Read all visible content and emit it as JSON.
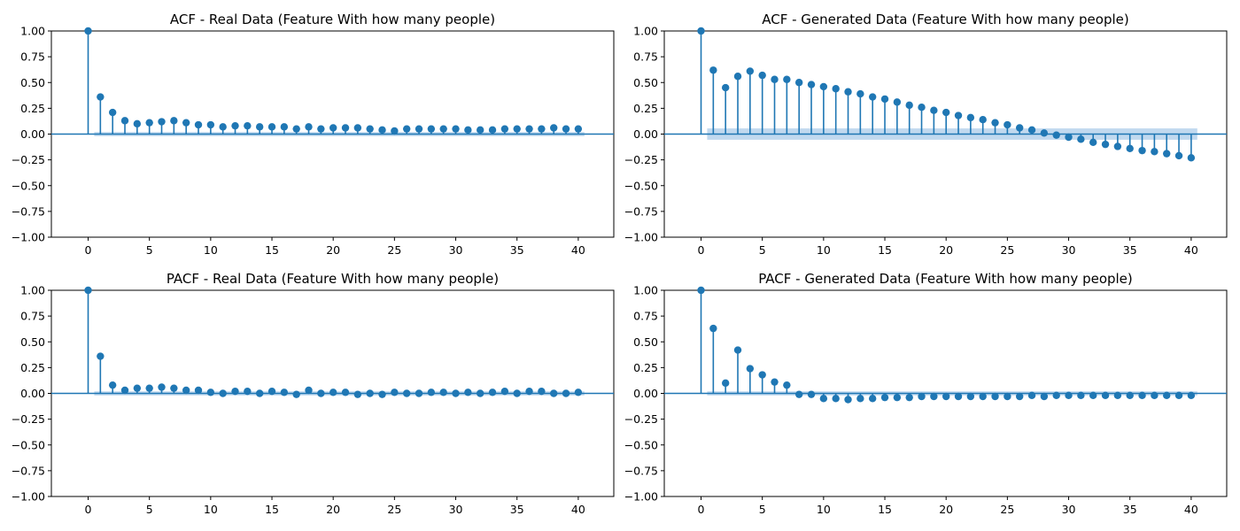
{
  "colors": {
    "series": "#1f77b4",
    "conf_band": "#a6c9e8",
    "axis": "#000000",
    "background": "#ffffff"
  },
  "chart_data": [
    {
      "type": "stem",
      "title": "ACF - Real Data (Feature With how many people)",
      "xlim": [
        -3,
        42.9
      ],
      "ylim": [
        -1,
        1
      ],
      "xticks": [
        0,
        5,
        10,
        15,
        20,
        25,
        30,
        35,
        40
      ],
      "yticks": [
        -1.0,
        -0.75,
        -0.5,
        -0.25,
        0.0,
        0.25,
        0.5,
        0.75,
        1.0
      ],
      "ytick_labels": [
        "−1.00",
        "−0.75",
        "−0.50",
        "−0.25",
        "0.00",
        "0.25",
        "0.50",
        "0.75",
        "1.00"
      ],
      "xtick_labels": [
        "0",
        "5",
        "10",
        "15",
        "20",
        "25",
        "30",
        "35",
        "40"
      ],
      "zero_line": true,
      "confidence_band_halfwidth": 0.02,
      "lags": [
        0,
        1,
        2,
        3,
        4,
        5,
        6,
        7,
        8,
        9,
        10,
        11,
        12,
        13,
        14,
        15,
        16,
        17,
        18,
        19,
        20,
        21,
        22,
        23,
        24,
        25,
        26,
        27,
        28,
        29,
        30,
        31,
        32,
        33,
        34,
        35,
        36,
        37,
        38,
        39,
        40
      ],
      "values": [
        1.0,
        0.36,
        0.21,
        0.13,
        0.1,
        0.11,
        0.12,
        0.13,
        0.11,
        0.09,
        0.09,
        0.07,
        0.08,
        0.08,
        0.07,
        0.07,
        0.07,
        0.05,
        0.07,
        0.05,
        0.06,
        0.06,
        0.06,
        0.05,
        0.04,
        0.03,
        0.05,
        0.05,
        0.05,
        0.05,
        0.05,
        0.04,
        0.04,
        0.04,
        0.05,
        0.05,
        0.05,
        0.05,
        0.06,
        0.05,
        0.05
      ]
    },
    {
      "type": "stem",
      "title": "ACF - Generated Data (Feature With how many people)",
      "xlim": [
        -3,
        42.9
      ],
      "ylim": [
        -1,
        1
      ],
      "xticks": [
        0,
        5,
        10,
        15,
        20,
        25,
        30,
        35,
        40
      ],
      "yticks": [
        -1.0,
        -0.75,
        -0.5,
        -0.25,
        0.0,
        0.25,
        0.5,
        0.75,
        1.0
      ],
      "ytick_labels": [
        "−1.00",
        "−0.75",
        "−0.50",
        "−0.25",
        "0.00",
        "0.25",
        "0.50",
        "0.75",
        "1.00"
      ],
      "xtick_labels": [
        "0",
        "5",
        "10",
        "15",
        "20",
        "25",
        "30",
        "35",
        "40"
      ],
      "zero_line": true,
      "confidence_band_halfwidth": 0.055,
      "lags": [
        0,
        1,
        2,
        3,
        4,
        5,
        6,
        7,
        8,
        9,
        10,
        11,
        12,
        13,
        14,
        15,
        16,
        17,
        18,
        19,
        20,
        21,
        22,
        23,
        24,
        25,
        26,
        27,
        28,
        29,
        30,
        31,
        32,
        33,
        34,
        35,
        36,
        37,
        38,
        39,
        40
      ],
      "values": [
        1.0,
        0.62,
        0.45,
        0.56,
        0.61,
        0.57,
        0.53,
        0.53,
        0.5,
        0.48,
        0.46,
        0.44,
        0.41,
        0.39,
        0.36,
        0.34,
        0.31,
        0.28,
        0.26,
        0.23,
        0.21,
        0.18,
        0.16,
        0.14,
        0.11,
        0.09,
        0.06,
        0.04,
        0.01,
        -0.01,
        -0.03,
        -0.05,
        -0.08,
        -0.1,
        -0.12,
        -0.14,
        -0.16,
        -0.17,
        -0.19,
        -0.21,
        -0.23
      ]
    },
    {
      "type": "stem",
      "title": "PACF - Real Data (Feature With how many people)",
      "xlim": [
        -3,
        42.9
      ],
      "ylim": [
        -1,
        1
      ],
      "xticks": [
        0,
        5,
        10,
        15,
        20,
        25,
        30,
        35,
        40
      ],
      "yticks": [
        -1.0,
        -0.75,
        -0.5,
        -0.25,
        0.0,
        0.25,
        0.5,
        0.75,
        1.0
      ],
      "ytick_labels": [
        "−1.00",
        "−0.75",
        "−0.50",
        "−0.25",
        "0.00",
        "0.25",
        "0.50",
        "0.75",
        "1.00"
      ],
      "xtick_labels": [
        "0",
        "5",
        "10",
        "15",
        "20",
        "25",
        "30",
        "35",
        "40"
      ],
      "zero_line": true,
      "confidence_band_halfwidth": 0.02,
      "lags": [
        0,
        1,
        2,
        3,
        4,
        5,
        6,
        7,
        8,
        9,
        10,
        11,
        12,
        13,
        14,
        15,
        16,
        17,
        18,
        19,
        20,
        21,
        22,
        23,
        24,
        25,
        26,
        27,
        28,
        29,
        30,
        31,
        32,
        33,
        34,
        35,
        36,
        37,
        38,
        39,
        40
      ],
      "values": [
        1.0,
        0.36,
        0.08,
        0.03,
        0.05,
        0.05,
        0.06,
        0.05,
        0.03,
        0.03,
        0.01,
        0.0,
        0.02,
        0.02,
        0.0,
        0.02,
        0.01,
        -0.01,
        0.03,
        0.0,
        0.01,
        0.01,
        -0.01,
        0.0,
        -0.01,
        0.01,
        0.0,
        0.0,
        0.01,
        0.01,
        0.0,
        0.01,
        0.0,
        0.01,
        0.02,
        0.0,
        0.02,
        0.02,
        0.0,
        0.0,
        0.01
      ]
    },
    {
      "type": "stem",
      "title": "PACF - Generated Data (Feature With how many people)",
      "xlim": [
        -3,
        42.9
      ],
      "ylim": [
        -1,
        1
      ],
      "xticks": [
        0,
        5,
        10,
        15,
        20,
        25,
        30,
        35,
        40
      ],
      "yticks": [
        -1.0,
        -0.75,
        -0.5,
        -0.25,
        0.0,
        0.25,
        0.5,
        0.75,
        1.0
      ],
      "ytick_labels": [
        "−1.00",
        "−0.75",
        "−0.50",
        "−0.25",
        "0.00",
        "0.25",
        "0.50",
        "0.75",
        "1.00"
      ],
      "xtick_labels": [
        "0",
        "5",
        "10",
        "15",
        "20",
        "25",
        "30",
        "35",
        "40"
      ],
      "zero_line": true,
      "confidence_band_halfwidth": 0.02,
      "lags": [
        0,
        1,
        2,
        3,
        4,
        5,
        6,
        7,
        8,
        9,
        10,
        11,
        12,
        13,
        14,
        15,
        16,
        17,
        18,
        19,
        20,
        21,
        22,
        23,
        24,
        25,
        26,
        27,
        28,
        29,
        30,
        31,
        32,
        33,
        34,
        35,
        36,
        37,
        38,
        39,
        40
      ],
      "values": [
        1.0,
        0.63,
        0.1,
        0.42,
        0.24,
        0.18,
        0.11,
        0.08,
        -0.01,
        -0.01,
        -0.05,
        -0.05,
        -0.06,
        -0.05,
        -0.05,
        -0.04,
        -0.04,
        -0.04,
        -0.03,
        -0.03,
        -0.03,
        -0.03,
        -0.03,
        -0.03,
        -0.03,
        -0.03,
        -0.03,
        -0.02,
        -0.03,
        -0.02,
        -0.02,
        -0.02,
        -0.02,
        -0.02,
        -0.02,
        -0.02,
        -0.02,
        -0.02,
        -0.02,
        -0.02,
        -0.02
      ]
    }
  ]
}
